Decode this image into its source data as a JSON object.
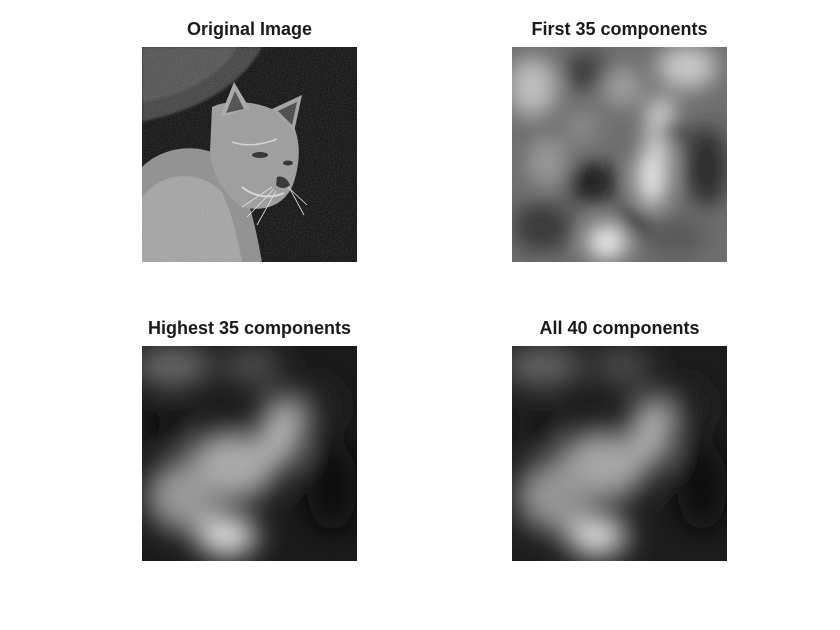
{
  "panels": [
    {
      "title": "Original Image",
      "image": "bobcat-photo"
    },
    {
      "title": "First 35 components",
      "image": "blurred-reconstruction"
    },
    {
      "title": "Highest 35 components",
      "image": "smooth-reconstruction"
    },
    {
      "title": "All 40 components",
      "image": "smooth-reconstruction"
    }
  ]
}
